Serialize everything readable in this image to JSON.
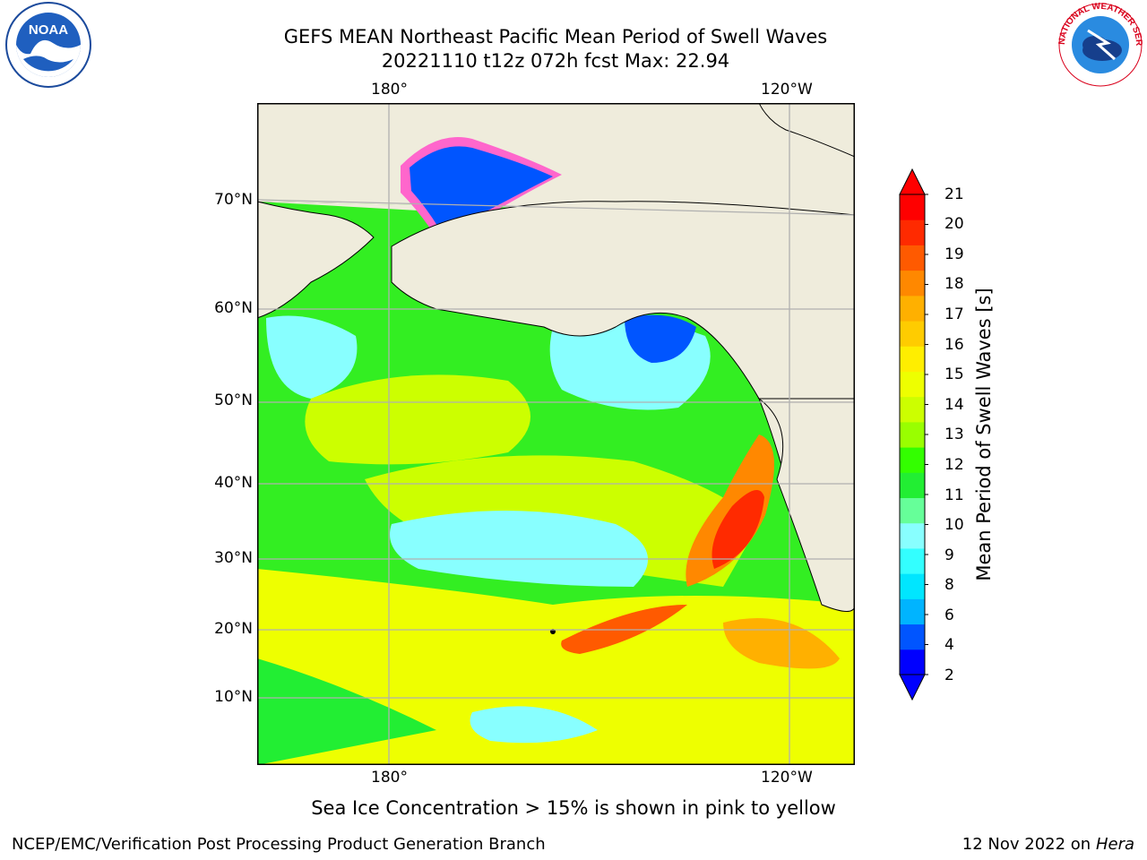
{
  "header": {
    "title_line1": "GEFS MEAN Northeast Pacific Mean Period of Swell Waves",
    "title_line2": "20221110 t12z 072h fcst   Max: 22.94"
  },
  "map": {
    "lon_labels": [
      "180°",
      "120°W"
    ],
    "lat_labels": [
      "70°N",
      "60°N",
      "50°N",
      "40°N",
      "30°N",
      "20°N",
      "10°N"
    ],
    "colors": {
      "land": "#efecdc",
      "coast": "#000000",
      "grid": "#b0b0b0",
      "ice_pink": "#ff66cc",
      "ice_yellow": "#ffcc33"
    }
  },
  "colorbar": {
    "label": "Mean Period of Swell Waves [s]",
    "ticks": [
      "21",
      "20",
      "19",
      "18",
      "17",
      "16",
      "15",
      "14",
      "13",
      "12",
      "11",
      "10",
      "9",
      "8",
      "6",
      "4",
      "2"
    ],
    "colors": [
      "#0000ff",
      "#0055ff",
      "#00b4ff",
      "#00e6ff",
      "#33ffff",
      "#88ffff",
      "#66ff99",
      "#22ee33",
      "#33ff00",
      "#99ff00",
      "#ccff00",
      "#eeff00",
      "#ffee00",
      "#ffcc00",
      "#ffb000",
      "#ff8800",
      "#ff5a00",
      "#ff2a00",
      "#ff0000"
    ]
  },
  "footer": {
    "caption": "Sea Ice Concentration > 15% is shown in pink to yellow",
    "left": "NCEP/EMC/Verification Post Processing Product Generation Branch",
    "right_date": "12 Nov 2022 on",
    "right_machine": "Hera"
  },
  "logos": {
    "noaa_text": "NOAA",
    "nws_text": "NATIONAL WEATHER SERVICE"
  }
}
